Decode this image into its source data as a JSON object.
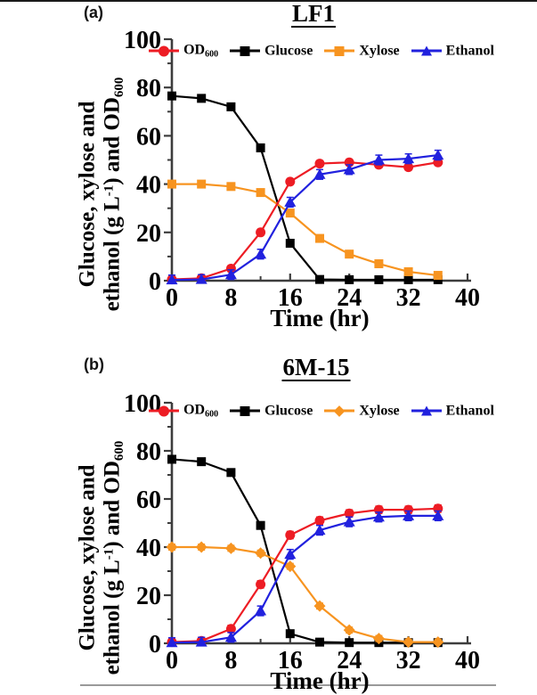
{
  "panels": [
    {
      "letter": "(a)",
      "title": "LF1",
      "xlabel": "Time (hr)",
      "ylabel_line1": "Glucose, xylose and",
      "ylabel_line2_pre": "ethanol (g L",
      "ylabel_line2_sup": "-1",
      "ylabel_line2_mid": ") and OD",
      "ylabel_line2_sub": "600"
    },
    {
      "letter": "(b)",
      "title": "6M-15",
      "xlabel": "Time (hr)",
      "ylabel_line1": "Glucose, xylose and",
      "ylabel_line2_pre": "ethanol (g L",
      "ylabel_line2_sup": "-1",
      "ylabel_line2_mid": ") and OD",
      "ylabel_line2_sub": "600"
    }
  ],
  "colors": {
    "od600": "#ed1c24",
    "glucose": "#000000",
    "xylose": "#f79420",
    "ethanol": "#2121de",
    "axis": "#3d3d3d",
    "text": "#000000"
  },
  "chart_data": [
    {
      "type": "line",
      "title": "LF1",
      "xlabel": "Time (hr)",
      "ylabel": "Glucose, xylose and ethanol (g L-1) and OD600",
      "x": [
        0,
        4,
        8,
        12,
        16,
        20,
        24,
        28,
        32,
        36
      ],
      "xlim": [
        0,
        40
      ],
      "ylim": [
        0,
        100
      ],
      "x_major_ticks": [
        0,
        8,
        16,
        24,
        32,
        40
      ],
      "x_minor_ticks": [
        4,
        12,
        20,
        28,
        36
      ],
      "y_major_ticks": [
        0,
        20,
        40,
        60,
        80,
        100
      ],
      "y_minor_ticks": [
        10,
        30,
        50,
        70,
        90
      ],
      "grid": false,
      "legend_position": "top-inside",
      "series": [
        {
          "name": "OD600",
          "legend_main": "OD",
          "legend_sub": "600",
          "color": "#ed1c24",
          "marker": "circle",
          "err": 1.2,
          "values": [
            0.5,
            1,
            5,
            20,
            41,
            48.5,
            49,
            48,
            47,
            49
          ]
        },
        {
          "name": "Glucose",
          "color": "#000000",
          "marker": "square",
          "err": 1,
          "values": [
            76.5,
            75.5,
            72,
            55,
            15.5,
            0.5,
            0.4,
            0.4,
            0.4,
            0.4
          ]
        },
        {
          "name": "Xylose",
          "color": "#f79420",
          "marker": "square",
          "err": 1.2,
          "values": [
            40,
            40,
            39,
            36.5,
            28,
            17.5,
            11,
            7,
            3.7,
            2.2
          ]
        },
        {
          "name": "Ethanol",
          "color": "#2121de",
          "marker": "triangle",
          "err": 2,
          "values": [
            0.3,
            0.5,
            2.5,
            11,
            32.5,
            44,
            46,
            50,
            50.5,
            52
          ]
        }
      ]
    },
    {
      "type": "line",
      "title": "6M-15",
      "xlabel": "Time (hr)",
      "ylabel": "Glucose, xylose and ethanol (g L-1) and OD600",
      "x": [
        0,
        4,
        8,
        12,
        16,
        20,
        24,
        28,
        32,
        36
      ],
      "xlim": [
        0,
        40
      ],
      "ylim": [
        0,
        100
      ],
      "x_major_ticks": [
        0,
        8,
        16,
        24,
        32,
        40
      ],
      "x_minor_ticks": [
        4,
        12,
        20,
        28,
        36
      ],
      "y_major_ticks": [
        0,
        20,
        40,
        60,
        80,
        100
      ],
      "y_minor_ticks": [
        10,
        30,
        50,
        70,
        90
      ],
      "grid": false,
      "legend_position": "top-inside",
      "series": [
        {
          "name": "OD600",
          "legend_main": "OD",
          "legend_sub": "600",
          "color": "#ed1c24",
          "marker": "circle",
          "err": 1.5,
          "values": [
            0.5,
            1,
            6,
            24.5,
            45,
            51,
            54,
            55.5,
            55.5,
            56
          ]
        },
        {
          "name": "Glucose",
          "color": "#000000",
          "marker": "square",
          "err": 1,
          "values": [
            76.5,
            75.5,
            71,
            49,
            4,
            0.5,
            0.3,
            0.3,
            0.3,
            0.3
          ]
        },
        {
          "name": "Xylose",
          "color": "#f79420",
          "marker": "diamond",
          "err": 1.2,
          "values": [
            40,
            40,
            39.5,
            37.5,
            32,
            15.5,
            5.5,
            2,
            0.5,
            0.5
          ]
        },
        {
          "name": "Ethanol",
          "color": "#2121de",
          "marker": "triangle",
          "err": 2,
          "values": [
            0.3,
            0.5,
            2.5,
            13.5,
            37,
            47,
            50.5,
            52.5,
            53,
            53
          ]
        }
      ]
    }
  ]
}
